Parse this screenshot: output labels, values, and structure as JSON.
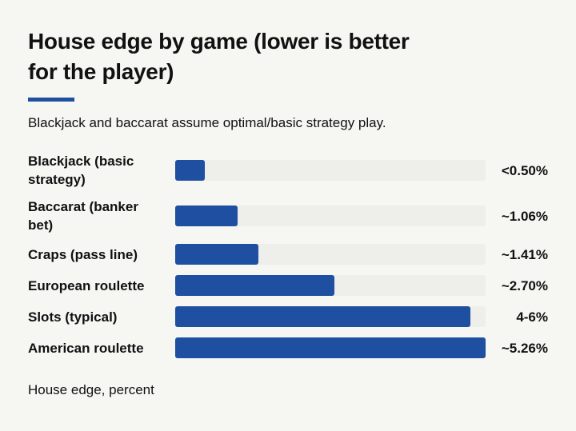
{
  "title": "House edge by game (lower is better for the player)",
  "subtitle": "Blackjack and baccarat assume optimal/basic strategy play.",
  "footer_note": "House edge, percent",
  "colors": {
    "bar": "#1f4fa0",
    "accent": "#1f4fa0",
    "track": "#eeeeea",
    "background": "#f6f6f3"
  },
  "chart_data": {
    "type": "bar",
    "orientation": "horizontal",
    "title": "House edge by game (lower is better for the player)",
    "xlabel": "House edge, percent",
    "ylabel": "",
    "categories": [
      "Blackjack (basic strategy)",
      "Baccarat (banker bet)",
      "Craps (pass line)",
      "European roulette",
      "Slots (typical)",
      "American roulette"
    ],
    "values": [
      0.5,
      1.06,
      1.41,
      2.7,
      5.0,
      5.26
    ],
    "value_labels": [
      "<0.50%",
      "~1.06%",
      "~1.41%",
      "~2.70%",
      "4-6%",
      "~5.26%"
    ],
    "xlim": [
      0,
      5.26
    ],
    "grid": false,
    "legend": "none"
  }
}
